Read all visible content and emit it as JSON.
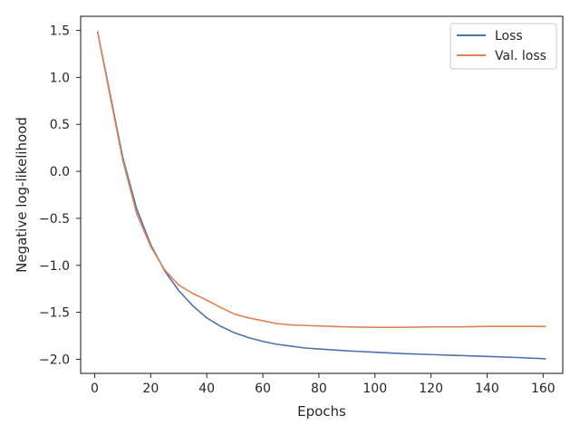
{
  "chart_data": {
    "type": "line",
    "xlabel": "Epochs",
    "ylabel": "Negative log-likelihood",
    "xlim": [
      -5,
      167
    ],
    "ylim": [
      -2.15,
      1.65
    ],
    "xticks": [
      0,
      20,
      40,
      60,
      80,
      100,
      120,
      140,
      160
    ],
    "xtick_labels": [
      "0",
      "20",
      "40",
      "60",
      "80",
      "100",
      "120",
      "140",
      "160"
    ],
    "yticks": [
      1.5,
      1.0,
      0.5,
      0.0,
      -0.5,
      -1.0,
      -1.5,
      -2.0
    ],
    "ytick_labels": [
      "1.5",
      "1.0",
      "0.5",
      "0.0",
      "−0.5",
      "−1.0",
      "−1.5",
      "−2.0"
    ],
    "grid": false,
    "legend_position": "top-right",
    "x": [
      1,
      5,
      10,
      15,
      20,
      25,
      30,
      35,
      40,
      45,
      50,
      55,
      60,
      65,
      70,
      75,
      80,
      90,
      100,
      110,
      120,
      130,
      140,
      150,
      161
    ],
    "series": [
      {
        "name": "Loss",
        "color": "#4c72b0",
        "values": [
          1.49,
          0.9,
          0.15,
          -0.4,
          -0.78,
          -1.06,
          -1.27,
          -1.43,
          -1.56,
          -1.65,
          -1.72,
          -1.77,
          -1.81,
          -1.84,
          -1.86,
          -1.88,
          -1.89,
          -1.91,
          -1.925,
          -1.94,
          -1.95,
          -1.96,
          -1.97,
          -1.98,
          -1.995
        ]
      },
      {
        "name": "Val. loss",
        "color": "#dd8452",
        "values": [
          1.49,
          0.88,
          0.12,
          -0.45,
          -0.8,
          -1.05,
          -1.21,
          -1.3,
          -1.37,
          -1.45,
          -1.52,
          -1.56,
          -1.59,
          -1.62,
          -1.635,
          -1.64,
          -1.645,
          -1.655,
          -1.66,
          -1.66,
          -1.655,
          -1.655,
          -1.65,
          -1.65,
          -1.65
        ]
      }
    ]
  }
}
